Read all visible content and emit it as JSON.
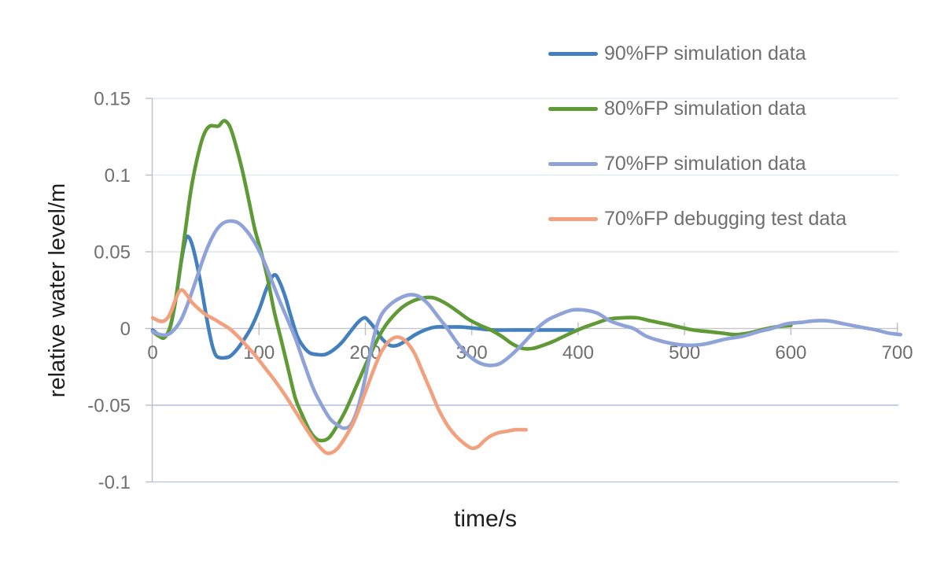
{
  "figure": {
    "background": "#ffffff"
  },
  "axes": {
    "y_title": "relative water level/m",
    "x_title": "time/s",
    "text_color": "#1f1f1f",
    "tick_label_color": "#6f6f6f",
    "axis_line_color": "#bfbfbf",
    "tick_mark_color": "#bfbfbf"
  },
  "chart_data": {
    "type": "line",
    "title": "",
    "xlabel": "time/s",
    "ylabel": "relative water level/m",
    "xlim": [
      0,
      700
    ],
    "ylim": [
      -0.1,
      0.15
    ],
    "grid": true,
    "legend_position": "top-right",
    "x_ticks": [
      {
        "value": 0,
        "label": "0"
      },
      {
        "value": 100,
        "label": "100"
      },
      {
        "value": 200,
        "label": "200"
      },
      {
        "value": 300,
        "label": "300"
      },
      {
        "value": 400,
        "label": "400"
      },
      {
        "value": 500,
        "label": "500"
      },
      {
        "value": 600,
        "label": "600"
      },
      {
        "value": 700,
        "label": "700"
      }
    ],
    "y_ticks": [
      {
        "value": 0.15,
        "label": "0.15",
        "grid_color": "#dce5f3"
      },
      {
        "value": 0.1,
        "label": "0.1",
        "grid_color": "#dce5f3"
      },
      {
        "value": 0.05,
        "label": "0.05",
        "grid_color": "#d4dff0"
      },
      {
        "value": 0.0,
        "label": "0",
        "grid_color": "#c9c9c9"
      },
      {
        "value": -0.05,
        "label": "-0.05",
        "grid_color": "#9fb3da"
      },
      {
        "value": -0.1,
        "label": "-0.1",
        "grid_color": "#b0c1e2"
      }
    ],
    "series": [
      {
        "name": "90%FP simulation data",
        "color": "#4480bd",
        "points": [
          [
            0,
            -0.001
          ],
          [
            6,
            -0.004
          ],
          [
            12,
            -0.005
          ],
          [
            17,
            0.002
          ],
          [
            22,
            0.02
          ],
          [
            27,
            0.044
          ],
          [
            31,
            0.058
          ],
          [
            33,
            0.06
          ],
          [
            36,
            0.057
          ],
          [
            40,
            0.047
          ],
          [
            45,
            0.03
          ],
          [
            50,
            0.01
          ],
          [
            55,
            -0.008
          ],
          [
            59,
            -0.017
          ],
          [
            63,
            -0.019
          ],
          [
            68,
            -0.019
          ],
          [
            73,
            -0.018
          ],
          [
            80,
            -0.013
          ],
          [
            87,
            -0.006
          ],
          [
            93,
            0.001
          ],
          [
            100,
            0.012
          ],
          [
            106,
            0.024
          ],
          [
            111,
            0.032
          ],
          [
            115,
            0.035
          ],
          [
            119,
            0.031
          ],
          [
            125,
            0.02
          ],
          [
            130,
            0.008
          ],
          [
            136,
            -0.005
          ],
          [
            142,
            -0.012
          ],
          [
            148,
            -0.016
          ],
          [
            155,
            -0.017
          ],
          [
            162,
            -0.017
          ],
          [
            170,
            -0.014
          ],
          [
            178,
            -0.009
          ],
          [
            186,
            -0.002
          ],
          [
            193,
            0.004
          ],
          [
            199,
            0.007
          ],
          [
            203,
            0.005
          ],
          [
            209,
            0.0
          ],
          [
            216,
            -0.007
          ],
          [
            223,
            -0.011
          ],
          [
            230,
            -0.011
          ],
          [
            238,
            -0.008
          ],
          [
            247,
            -0.004
          ],
          [
            256,
            -0.001
          ],
          [
            266,
            0.001
          ],
          [
            278,
            0.001
          ],
          [
            290,
            0.001
          ],
          [
            305,
            0.0
          ],
          [
            320,
            -0.001
          ],
          [
            340,
            -0.001
          ],
          [
            360,
            -0.001
          ],
          [
            380,
            -0.001
          ],
          [
            395,
            -0.001
          ]
        ]
      },
      {
        "name": "80%FP simulation data",
        "color": "#5f9a37",
        "points": [
          [
            0,
            -0.002
          ],
          [
            6,
            -0.005
          ],
          [
            11,
            -0.006
          ],
          [
            16,
            0.0
          ],
          [
            21,
            0.016
          ],
          [
            26,
            0.04
          ],
          [
            31,
            0.065
          ],
          [
            36,
            0.09
          ],
          [
            41,
            0.108
          ],
          [
            46,
            0.122
          ],
          [
            50,
            0.129
          ],
          [
            54,
            0.132
          ],
          [
            58,
            0.132
          ],
          [
            62,
            0.132
          ],
          [
            66,
            0.135
          ],
          [
            69,
            0.135
          ],
          [
            73,
            0.131
          ],
          [
            78,
            0.12
          ],
          [
            84,
            0.104
          ],
          [
            90,
            0.085
          ],
          [
            96,
            0.065
          ],
          [
            102,
            0.05
          ],
          [
            108,
            0.033
          ],
          [
            114,
            0.012
          ],
          [
            120,
            -0.005
          ],
          [
            127,
            -0.025
          ],
          [
            134,
            -0.045
          ],
          [
            141,
            -0.057
          ],
          [
            148,
            -0.067
          ],
          [
            154,
            -0.072
          ],
          [
            160,
            -0.073
          ],
          [
            166,
            -0.071
          ],
          [
            173,
            -0.064
          ],
          [
            181,
            -0.054
          ],
          [
            190,
            -0.04
          ],
          [
            200,
            -0.024
          ],
          [
            210,
            -0.009
          ],
          [
            218,
            0.001
          ],
          [
            226,
            0.008
          ],
          [
            235,
            0.014
          ],
          [
            245,
            0.018
          ],
          [
            255,
            0.02
          ],
          [
            264,
            0.02
          ],
          [
            274,
            0.017
          ],
          [
            285,
            0.012
          ],
          [
            297,
            0.006
          ],
          [
            308,
            0.002
          ],
          [
            318,
            -0.001
          ],
          [
            328,
            -0.005
          ],
          [
            338,
            -0.01
          ],
          [
            348,
            -0.013
          ],
          [
            357,
            -0.013
          ],
          [
            367,
            -0.011
          ],
          [
            378,
            -0.008
          ],
          [
            390,
            -0.004
          ],
          [
            403,
            0.0
          ],
          [
            415,
            0.003
          ],
          [
            428,
            0.006
          ],
          [
            442,
            0.007
          ],
          [
            455,
            0.007
          ],
          [
            468,
            0.005
          ],
          [
            482,
            0.003
          ],
          [
            495,
            0.001
          ],
          [
            508,
            -0.001
          ],
          [
            522,
            -0.002
          ],
          [
            535,
            -0.003
          ],
          [
            548,
            -0.004
          ],
          [
            560,
            -0.003
          ],
          [
            572,
            -0.001
          ],
          [
            585,
            0.001
          ],
          [
            600,
            0.002
          ]
        ]
      },
      {
        "name": "70%FP simulation data",
        "color": "#8fa3d8",
        "points": [
          [
            0,
            -0.002
          ],
          [
            7,
            -0.004
          ],
          [
            14,
            -0.004
          ],
          [
            20,
            -0.001
          ],
          [
            27,
            0.006
          ],
          [
            34,
            0.018
          ],
          [
            42,
            0.034
          ],
          [
            50,
            0.05
          ],
          [
            58,
            0.062
          ],
          [
            65,
            0.068
          ],
          [
            72,
            0.07
          ],
          [
            80,
            0.069
          ],
          [
            88,
            0.064
          ],
          [
            96,
            0.056
          ],
          [
            104,
            0.045
          ],
          [
            112,
            0.031
          ],
          [
            120,
            0.017
          ],
          [
            128,
            0.004
          ],
          [
            135,
            -0.008
          ],
          [
            143,
            -0.024
          ],
          [
            151,
            -0.039
          ],
          [
            159,
            -0.05
          ],
          [
            167,
            -0.059
          ],
          [
            174,
            -0.063
          ],
          [
            180,
            -0.065
          ],
          [
            186,
            -0.063
          ],
          [
            192,
            -0.054
          ],
          [
            198,
            -0.038
          ],
          [
            204,
            -0.018
          ],
          [
            210,
            0.0
          ],
          [
            216,
            0.01
          ],
          [
            224,
            0.016
          ],
          [
            233,
            0.02
          ],
          [
            242,
            0.022
          ],
          [
            250,
            0.021
          ],
          [
            259,
            0.016
          ],
          [
            268,
            0.008
          ],
          [
            277,
            0.0
          ],
          [
            286,
            -0.009
          ],
          [
            296,
            -0.017
          ],
          [
            306,
            -0.022
          ],
          [
            316,
            -0.024
          ],
          [
            326,
            -0.023
          ],
          [
            336,
            -0.018
          ],
          [
            348,
            -0.01
          ],
          [
            360,
            -0.001
          ],
          [
            370,
            0.005
          ],
          [
            382,
            0.009
          ],
          [
            394,
            0.012
          ],
          [
            406,
            0.012
          ],
          [
            418,
            0.01
          ],
          [
            430,
            0.005
          ],
          [
            442,
            0.002
          ],
          [
            452,
            0.0
          ],
          [
            464,
            -0.005
          ],
          [
            477,
            -0.008
          ],
          [
            490,
            -0.01
          ],
          [
            505,
            -0.011
          ],
          [
            520,
            -0.01
          ],
          [
            538,
            -0.007
          ],
          [
            555,
            -0.005
          ],
          [
            570,
            -0.002
          ],
          [
            582,
            0.0
          ],
          [
            596,
            0.003
          ],
          [
            610,
            0.004
          ],
          [
            622,
            0.005
          ],
          [
            635,
            0.005
          ],
          [
            650,
            0.003
          ],
          [
            665,
            0.001
          ],
          [
            680,
            -0.001
          ],
          [
            692,
            -0.003
          ],
          [
            703,
            -0.004
          ]
        ]
      },
      {
        "name": "70%FP debugging test data",
        "color": "#f2a17e",
        "points": [
          [
            0,
            0.007
          ],
          [
            6,
            0.005
          ],
          [
            11,
            0.005
          ],
          [
            16,
            0.009
          ],
          [
            21,
            0.018
          ],
          [
            25,
            0.024
          ],
          [
            28,
            0.025
          ],
          [
            32,
            0.022
          ],
          [
            37,
            0.017
          ],
          [
            43,
            0.013
          ],
          [
            50,
            0.009
          ],
          [
            58,
            0.006
          ],
          [
            65,
            0.003
          ],
          [
            72,
            0.0
          ],
          [
            80,
            -0.005
          ],
          [
            88,
            -0.011
          ],
          [
            97,
            -0.018
          ],
          [
            106,
            -0.026
          ],
          [
            116,
            -0.035
          ],
          [
            126,
            -0.045
          ],
          [
            136,
            -0.056
          ],
          [
            145,
            -0.066
          ],
          [
            152,
            -0.073
          ],
          [
            158,
            -0.078
          ],
          [
            163,
            -0.081
          ],
          [
            168,
            -0.081
          ],
          [
            174,
            -0.078
          ],
          [
            181,
            -0.071
          ],
          [
            189,
            -0.061
          ],
          [
            197,
            -0.047
          ],
          [
            205,
            -0.032
          ],
          [
            213,
            -0.018
          ],
          [
            220,
            -0.01
          ],
          [
            227,
            -0.006
          ],
          [
            233,
            -0.006
          ],
          [
            239,
            -0.009
          ],
          [
            246,
            -0.016
          ],
          [
            253,
            -0.027
          ],
          [
            261,
            -0.04
          ],
          [
            269,
            -0.053
          ],
          [
            277,
            -0.063
          ],
          [
            285,
            -0.07
          ],
          [
            293,
            -0.075
          ],
          [
            300,
            -0.078
          ],
          [
            306,
            -0.077
          ],
          [
            312,
            -0.073
          ],
          [
            318,
            -0.07
          ],
          [
            325,
            -0.068
          ],
          [
            333,
            -0.067
          ],
          [
            341,
            -0.066
          ],
          [
            351,
            -0.066
          ]
        ]
      }
    ]
  }
}
